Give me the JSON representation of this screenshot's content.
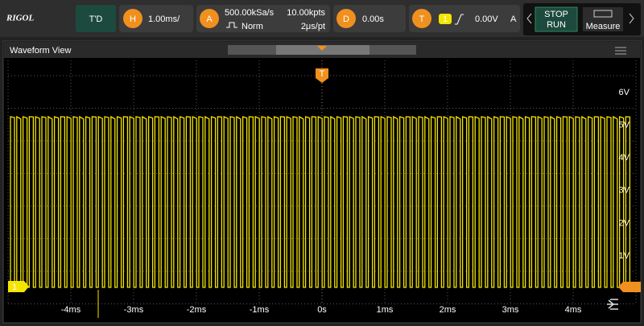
{
  "header": {
    "logo": "RIGOL",
    "mode": "T'D",
    "horizontal": {
      "icon": "H",
      "scale": "1.00ms/"
    },
    "acquire": {
      "icon": "A",
      "sample_rate": "500.00kSa/s",
      "memory_depth": "10.00kpts",
      "mode": "Norm",
      "time_per_point": "2μs/pt"
    },
    "delay": {
      "icon": "D",
      "value": "0.00s"
    },
    "trigger": {
      "icon": "T",
      "source": "1",
      "level": "0.00V",
      "sweep": "A"
    },
    "run_control": {
      "stop": "STOP",
      "run": "RUN"
    },
    "measure": "Measure"
  },
  "window": {
    "title": "Waveform View",
    "trigger_marker": "T",
    "channel_marker": "1",
    "voltage_labels": [
      "6V",
      "5V",
      "4V",
      "3V",
      "2V",
      "1V"
    ],
    "time_labels": [
      "-4ms",
      "-3ms",
      "-2ms",
      "-1ms",
      "0s",
      "1ms",
      "2ms",
      "3ms",
      "4ms"
    ]
  }
}
